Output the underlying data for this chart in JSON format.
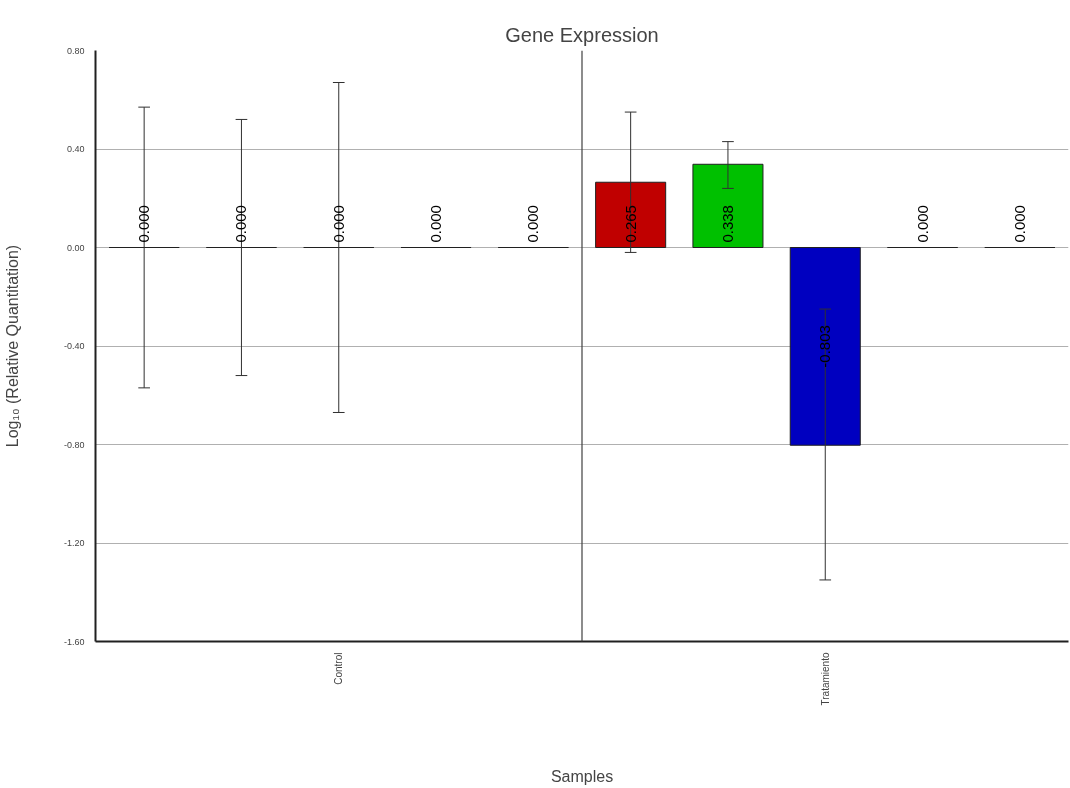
{
  "chart_data": {
    "type": "bar",
    "title": "Gene Expression",
    "xlabel": "Samples",
    "ylabel": "Log₁₀ (Relative Quantitation)",
    "categories": [
      null,
      null,
      "Control",
      null,
      null,
      null,
      null,
      "Tratamiento",
      null,
      null
    ],
    "values": [
      0.0,
      0.0,
      0.0,
      0.0,
      0.0,
      0.265,
      0.338,
      -0.803,
      0.0,
      0.0
    ],
    "colors": [
      "#202020",
      "#202020",
      "#202020",
      "#202020",
      "#202020",
      "#c00000",
      "#00c000",
      "#0000c0",
      "#202020",
      "#202020"
    ],
    "errors": [
      [
        -0.57,
        0.57
      ],
      [
        -0.52,
        0.52
      ],
      [
        -0.67,
        0.67
      ],
      null,
      null,
      [
        -0.02,
        0.55
      ],
      [
        0.24,
        0.43
      ],
      [
        -1.35,
        -0.25
      ],
      null,
      null
    ],
    "value_labels": [
      "0.000",
      "0.000",
      "0.000",
      "0.000",
      "0.000",
      "0.265",
      "0.338",
      "-0.803",
      "0.000",
      "0.000"
    ],
    "ylim": [
      -1.6,
      0.8
    ],
    "yticks": [
      {
        "value": -1.6,
        "label": "-1.60"
      },
      {
        "value": -1.2,
        "label": "-1.20"
      },
      {
        "value": -0.8,
        "label": "-0.80"
      },
      {
        "value": -0.4,
        "label": "-0.40"
      },
      {
        "value": 0,
        "label": "0.00"
      },
      {
        "value": 0.4,
        "label": "0.40"
      },
      {
        "value": 0.8,
        "label": "0.80"
      }
    ],
    "grid": "y"
  }
}
